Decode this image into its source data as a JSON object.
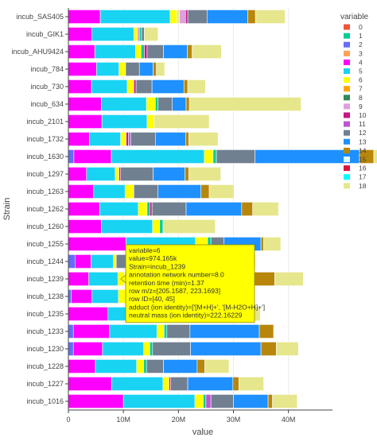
{
  "chart_data": {
    "type": "bar",
    "orientation": "horizontal",
    "barmode": "stack",
    "xlabel": "value",
    "ylabel": "Strain",
    "xlim": [
      0,
      48000000
    ],
    "x_ticks": [
      {
        "value": 0,
        "label": "0"
      },
      {
        "value": 10000000,
        "label": "10M"
      },
      {
        "value": 20000000,
        "label": "20M"
      },
      {
        "value": 30000000,
        "label": "30M"
      },
      {
        "value": 40000000,
        "label": "40M"
      }
    ],
    "grid": true,
    "legend": {
      "title": "variable",
      "placement": "right",
      "entries": [
        {
          "label": "0",
          "color": "#EF553B"
        },
        {
          "label": "1",
          "color": "#00CC96"
        },
        {
          "label": "2",
          "color": "#636EFA"
        },
        {
          "label": "3",
          "color": "#FFA15A"
        },
        {
          "label": "4",
          "color": "#FF00FF"
        },
        {
          "label": "5",
          "color": "#19D3F3"
        },
        {
          "label": "6",
          "color": "#FFFF00"
        },
        {
          "label": "7",
          "color": "#FFA500"
        },
        {
          "label": "8",
          "color": "#2E8B57"
        },
        {
          "label": "9",
          "color": "#DDA0DD"
        },
        {
          "label": "10",
          "color": "#C71585"
        },
        {
          "label": "11",
          "color": "#BA55D3"
        },
        {
          "label": "12",
          "color": "#708090"
        },
        {
          "label": "13",
          "color": "#1E90FF"
        },
        {
          "label": "14",
          "color": "#B8860B"
        },
        {
          "label": "15",
          "color": "#E0FFFF"
        },
        {
          "label": "16",
          "color": "#DC143C"
        },
        {
          "label": "17",
          "color": "#00FFFF"
        },
        {
          "label": "18",
          "color": "#E6E68C"
        }
      ]
    },
    "segment_colors": [
      "#636EFA",
      "#FF00FF",
      "#19D3F3",
      "#FFFF00",
      "#E6E68C",
      "#00CC96",
      "#FFA15A",
      "#DDA0DD",
      "#C71585",
      "#BA55D3",
      "#708090",
      "#1E90FF",
      "#B8860B",
      "#E0FFFF"
    ],
    "rows": [
      {
        "strain": "incub_SAS405",
        "segments": [
          [
            1,
            5.8
          ],
          [
            2,
            12.7
          ],
          [
            3,
            1.2
          ],
          [
            4,
            0.5
          ],
          [
            7,
            1.1
          ],
          [
            8,
            0.4
          ],
          [
            10,
            3.5
          ],
          [
            11,
            7.4
          ],
          [
            12,
            1.4
          ],
          [
            4,
            5.4
          ]
        ]
      },
      {
        "strain": "incub_GIK1",
        "segments": [
          [
            1,
            4.3
          ],
          [
            2,
            7.6
          ],
          [
            3,
            0.6
          ],
          [
            7,
            0.4
          ],
          [
            5,
            0.4
          ],
          [
            10,
            0.5
          ],
          [
            4,
            2.5
          ]
        ]
      },
      {
        "strain": "incub_AHU9424",
        "segments": [
          [
            1,
            4.8
          ],
          [
            2,
            7.4
          ],
          [
            3,
            1.0
          ],
          [
            5,
            0.6
          ],
          [
            8,
            0.5
          ],
          [
            10,
            3.0
          ],
          [
            11,
            4.3
          ],
          [
            12,
            0.9
          ],
          [
            4,
            5.3
          ]
        ]
      },
      {
        "strain": "incub_784",
        "segments": [
          [
            1,
            5.1
          ],
          [
            2,
            4.1
          ],
          [
            3,
            1.2
          ],
          [
            10,
            2.5
          ],
          [
            11,
            2.5
          ],
          [
            12,
            0.6
          ],
          [
            4,
            1.5
          ]
        ]
      },
      {
        "strain": "incub_730",
        "segments": [
          [
            1,
            4.2
          ],
          [
            2,
            6.5
          ],
          [
            3,
            1.2
          ],
          [
            8,
            0.4
          ],
          [
            10,
            2.9
          ],
          [
            11,
            5.8
          ],
          [
            12,
            0.7
          ],
          [
            4,
            3.2
          ]
        ]
      },
      {
        "strain": "incub_634",
        "segments": [
          [
            1,
            6.0
          ],
          [
            2,
            8.2
          ],
          [
            3,
            1.6
          ],
          [
            5,
            0.5
          ],
          [
            10,
            2.6
          ],
          [
            11,
            2.5
          ],
          [
            12,
            0.6
          ],
          [
            4,
            20.3
          ]
        ]
      },
      {
        "strain": "incub_2101",
        "segments": [
          [
            1,
            6.1
          ],
          [
            2,
            8.2
          ],
          [
            3,
            1.3
          ],
          [
            4,
            10.0
          ]
        ]
      },
      {
        "strain": "incub_1732",
        "segments": [
          [
            1,
            3.8
          ],
          [
            2,
            5.7
          ],
          [
            3,
            1.0
          ],
          [
            8,
            0.4
          ],
          [
            9,
            0.4
          ],
          [
            10,
            4.5
          ],
          [
            11,
            5.5
          ],
          [
            12,
            0.6
          ],
          [
            4,
            5.3
          ]
        ]
      },
      {
        "strain": "incub_1630",
        "segments": [
          [
            0,
            1.0
          ],
          [
            1,
            6.8
          ],
          [
            2,
            16.9
          ],
          [
            3,
            1.6
          ],
          [
            5,
            0.6
          ],
          [
            10,
            7.0
          ],
          [
            11,
            19.0
          ],
          [
            12,
            2.6
          ],
          [
            4,
            3.8
          ]
        ]
      },
      {
        "strain": "incub_1297",
        "segments": [
          [
            1,
            3.3
          ],
          [
            2,
            5.2
          ],
          [
            3,
            0.7
          ],
          [
            8,
            0.3
          ],
          [
            10,
            5.9
          ],
          [
            11,
            5.8
          ],
          [
            12,
            0.7
          ],
          [
            4,
            5.8
          ]
        ]
      },
      {
        "strain": "incub_1263",
        "segments": [
          [
            1,
            4.6
          ],
          [
            2,
            5.7
          ],
          [
            3,
            1.6
          ],
          [
            10,
            4.4
          ],
          [
            11,
            7.8
          ],
          [
            12,
            1.5
          ],
          [
            4,
            4.5
          ]
        ]
      },
      {
        "strain": "incub_1262",
        "segments": [
          [
            1,
            5.7
          ],
          [
            2,
            7.0
          ],
          [
            3,
            1.6
          ],
          [
            5,
            0.5
          ],
          [
            8,
            0.4
          ],
          [
            10,
            6.2
          ],
          [
            11,
            10.1
          ],
          [
            12,
            2.0
          ],
          [
            4,
            4.7
          ]
        ]
      },
      {
        "strain": "incub_1260",
        "segments": [
          [
            1,
            6.0
          ],
          [
            2,
            9.3
          ],
          [
            3,
            1.3
          ],
          [
            5,
            0.6
          ],
          [
            4,
            9.5
          ]
        ]
      },
      {
        "strain": "incub_1255",
        "segments": [
          [
            1,
            10.5
          ],
          [
            2,
            12.6
          ],
          [
            3,
            2.2
          ],
          [
            5,
            0.6
          ],
          [
            10,
            2.4
          ],
          [
            11,
            6.7
          ],
          [
            12,
            0.5
          ],
          [
            4,
            3.1
          ]
        ]
      },
      {
        "strain": "incub_1244",
        "segments": [
          [
            0,
            1.2
          ],
          [
            1,
            2.9
          ],
          [
            2,
            4.1
          ],
          [
            3,
            0.5
          ],
          [
            10,
            10.9
          ],
          [
            11,
            4.8
          ],
          [
            12,
            4.0
          ],
          [
            4,
            5.6
          ]
        ]
      },
      {
        "strain": "incub_1239",
        "segments": [
          [
            1,
            3.7
          ],
          [
            2,
            5.3
          ],
          [
            3,
            1.2
          ],
          [
            4,
            9.5
          ],
          [
            10,
            9.0
          ],
          [
            11,
            5.0
          ],
          [
            12,
            3.8
          ],
          [
            4,
            5.2
          ]
        ]
      },
      {
        "strain": "incub_1238",
        "segments": [
          [
            0,
            0.5
          ],
          [
            1,
            3.8
          ],
          [
            2,
            4.8
          ],
          [
            3,
            1.5
          ],
          [
            5,
            0.4
          ],
          [
            10,
            8.3
          ],
          [
            11,
            8.7
          ],
          [
            12,
            1.5
          ],
          [
            4,
            3.5
          ]
        ]
      },
      {
        "strain": "incub_1235",
        "segments": [
          [
            1,
            7.2
          ],
          [
            2,
            9.0
          ],
          [
            3,
            0.7
          ],
          [
            10,
            5.2
          ],
          [
            11,
            6.0
          ],
          [
            12,
            1.4
          ],
          [
            4,
            5.4
          ]
        ]
      },
      {
        "strain": "incub_1233",
        "segments": [
          [
            0,
            0.9
          ],
          [
            1,
            6.6
          ],
          [
            2,
            8.6
          ],
          [
            3,
            1.3
          ],
          [
            5,
            0.5
          ],
          [
            10,
            4.2
          ],
          [
            11,
            12.6
          ],
          [
            12,
            2.6
          ]
        ]
      },
      {
        "strain": "incub_1230",
        "segments": [
          [
            0,
            0.9
          ],
          [
            1,
            5.3
          ],
          [
            2,
            7.5
          ],
          [
            3,
            1.1
          ],
          [
            5,
            0.5
          ],
          [
            10,
            6.9
          ],
          [
            11,
            12.8
          ],
          [
            12,
            2.8
          ],
          [
            4,
            4.0
          ]
        ]
      },
      {
        "strain": "incub_1228",
        "segments": [
          [
            1,
            4.9
          ],
          [
            2,
            7.5
          ],
          [
            3,
            1.3
          ],
          [
            5,
            0.5
          ],
          [
            10,
            3.1
          ],
          [
            11,
            6.1
          ],
          [
            12,
            1.4
          ],
          [
            4,
            4.4
          ]
        ]
      },
      {
        "strain": "incub_1227",
        "segments": [
          [
            1,
            7.9
          ],
          [
            2,
            9.3
          ],
          [
            3,
            1.1
          ],
          [
            8,
            0.3
          ],
          [
            10,
            3.1
          ],
          [
            11,
            8.2
          ],
          [
            12,
            1.1
          ],
          [
            4,
            4.5
          ]
        ]
      },
      {
        "strain": "incub_1016",
        "segments": [
          [
            1,
            10.0
          ],
          [
            2,
            13.0
          ],
          [
            3,
            1.5
          ],
          [
            5,
            0.5
          ],
          [
            9,
            0.9
          ],
          [
            10,
            4.1
          ],
          [
            11,
            6.3
          ],
          [
            12,
            0.8
          ],
          [
            4,
            4.5
          ]
        ]
      }
    ],
    "value_scale": 1000000,
    "hover": {
      "target_strain": "incub_1239",
      "lines": [
        "variable=6",
        "value=974.165k",
        "Strain=incub_1239",
        "annotation network number=8.0",
        "retention time (min)=1.37",
        "row m/z=[205.1587, 223.1693]",
        "row ID=[40, 45]",
        "adduct (ion identity)=['[M+H]+', '[M-H2O+H]+']",
        "neutral mass (ion identity)=222.16229"
      ],
      "bg_color": "#FFFF00",
      "border_color": "#8B8B00"
    }
  }
}
